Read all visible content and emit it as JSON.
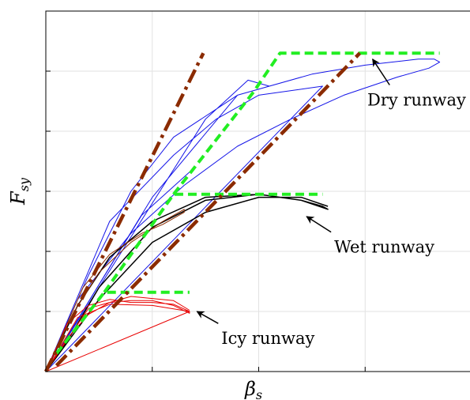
{
  "chart_data": {
    "type": "line",
    "xlabel": "β",
    "xlabel_sub": "s",
    "ylabel": "F",
    "ylabel_sub": "sy",
    "xlim": [
      0,
      4
    ],
    "ylim": [
      0,
      6
    ],
    "grid": true,
    "gridlines_x": [
      1,
      2,
      3
    ],
    "gridlines_y": [
      1,
      2,
      3,
      4,
      5
    ],
    "tick_labels": "none",
    "annotations": [
      {
        "text": "Dry runway",
        "arrow_from": [
          3.23,
          4.77
        ],
        "arrow_to": [
          3.07,
          5.2
        ]
      },
      {
        "text": "Wet runway",
        "arrow_from": [
          2.68,
          2.32
        ],
        "arrow_to": [
          2.45,
          2.58
        ]
      },
      {
        "text": "Icy runway",
        "arrow_from": [
          1.62,
          0.8
        ],
        "arrow_to": [
          1.42,
          1.0
        ]
      }
    ],
    "series": [
      {
        "color": "#1515e8",
        "style": "thin-solid",
        "x": [
          0,
          0.3,
          0.8,
          1.3,
          1.8,
          2.3,
          2.8,
          3.3,
          3.6,
          3.7,
          3.65,
          3.5,
          3.0,
          2.5,
          1.8,
          1.2,
          0.8,
          0.4,
          0,
          0.6,
          1.2,
          1.6,
          2.0,
          2.6,
          0,
          1.0,
          1.8,
          2.1,
          1.9,
          1.5,
          0,
          0.9,
          1.4
        ],
        "y": [
          0,
          1.2,
          2.3,
          3.1,
          3.75,
          4.2,
          4.6,
          4.9,
          5.05,
          5.15,
          5.2,
          5.2,
          5.1,
          4.95,
          4.6,
          3.9,
          3.0,
          1.6,
          0,
          2.5,
          3.6,
          4.2,
          4.6,
          4.75,
          0,
          2.9,
          4.6,
          4.75,
          4.85,
          4.2,
          0,
          2.6,
          3.4
        ]
      },
      {
        "color": "#000000",
        "style": "solid",
        "x": [
          0,
          0.3,
          0.6,
          1.0,
          1.5,
          2.0,
          2.4,
          2.6,
          2.65,
          2.4,
          2.0,
          1.5,
          1.0,
          0.5,
          0.2,
          0,
          0.5,
          1.0,
          1.5,
          2.0,
          2.4,
          2.65
        ],
        "y": [
          0,
          1.1,
          1.9,
          2.5,
          2.9,
          2.95,
          2.85,
          2.75,
          2.7,
          2.85,
          2.95,
          2.85,
          2.4,
          1.4,
          0.5,
          0,
          1.2,
          2.15,
          2.65,
          2.9,
          2.9,
          2.75
        ]
      },
      {
        "color": "#8b2b00",
        "style": "thin-solid",
        "x": [
          0,
          0.25,
          0.5,
          0.8,
          1.1,
          1.3,
          1.3,
          1.1,
          0.9,
          0.6,
          0.35,
          0.15,
          0
        ],
        "y": [
          0,
          0.95,
          1.65,
          2.15,
          2.5,
          2.7,
          2.65,
          2.45,
          2.3,
          1.95,
          1.4,
          0.6,
          0
        ]
      },
      {
        "color": "#e80000",
        "style": "thin-solid",
        "x": [
          0,
          0.2,
          0.4,
          0.6,
          0.8,
          1.0,
          1.2,
          1.35,
          1.35,
          1.2,
          1.0,
          0.8,
          0.6,
          0.4,
          0.2,
          0,
          0.3,
          0.6,
          1.0,
          1.35,
          0,
          0.4,
          0.8,
          1.2,
          1.35
        ],
        "y": [
          0,
          0.8,
          1.1,
          1.2,
          1.15,
          1.15,
          1.12,
          1.0,
          0.97,
          1.1,
          1.18,
          1.18,
          1.15,
          0.95,
          0.55,
          0,
          0.9,
          1.12,
          1.1,
          1.0,
          0,
          1.05,
          1.25,
          1.18,
          1.02
        ]
      },
      {
        "color": "#22ee22",
        "style": "dashed",
        "x": [
          0.1,
          0.55,
          1.35
        ],
        "y": [
          0.3,
          1.32,
          1.32
        ]
      },
      {
        "color": "#22ee22",
        "style": "dashed",
        "x": [
          0.55,
          1.2,
          2.6
        ],
        "y": [
          1.32,
          2.95,
          2.95
        ]
      },
      {
        "color": "#22ee22",
        "style": "dashed",
        "x": [
          1.2,
          1.95,
          2.2,
          3.7
        ],
        "y": [
          2.95,
          4.65,
          5.3,
          5.3
        ]
      },
      {
        "color": "#8b2b00",
        "style": "dash-dot",
        "x": [
          0,
          1.48
        ],
        "y": [
          0,
          5.3
        ]
      },
      {
        "color": "#8b2b00",
        "style": "dash-dot",
        "x": [
          0.1,
          2.95
        ],
        "y": [
          0.1,
          5.3
        ]
      }
    ]
  }
}
